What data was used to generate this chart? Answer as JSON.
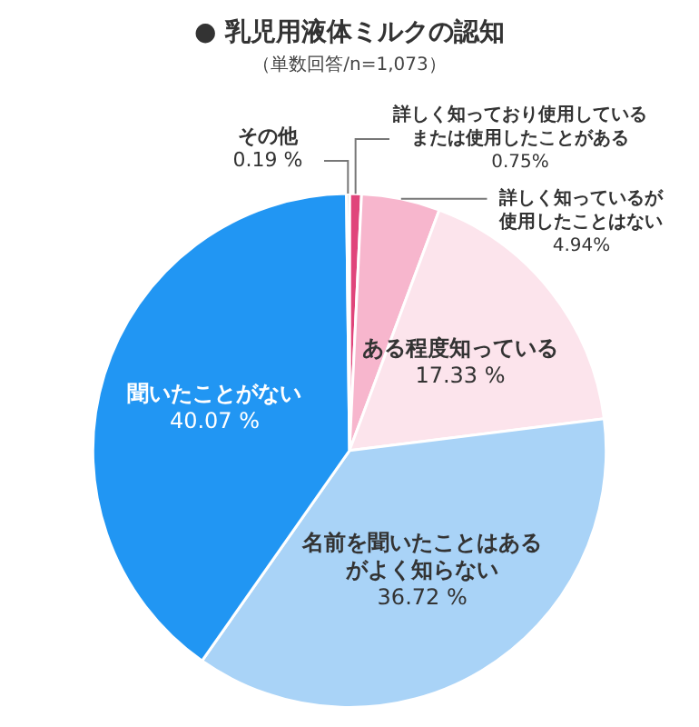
{
  "chart_data": {
    "type": "pie",
    "title": "● 乳児用液体ミルクの認知",
    "subtitle": "（単数回答/n=1,073）",
    "categories": [
      "詳しく知っており使用しているまたは使用したことがある",
      "詳しく知っているが使用したことはない",
      "ある程度知っている",
      "名前を聞いたことはあるがよく知らない",
      "聞いたことがない",
      "その他"
    ],
    "values": [
      0.75,
      4.94,
      17.33,
      36.72,
      40.07,
      0.19
    ],
    "colors": [
      "#e0457b",
      "#f7b6cd",
      "#fce4ec",
      "#a9d3f7",
      "#2196f3",
      "#bdbdbd"
    ],
    "value_labels": [
      "0.75%",
      "4.94%",
      "17.33 %",
      "36.72 %",
      "40.07 %",
      "0.19 %"
    ],
    "legend": false
  }
}
